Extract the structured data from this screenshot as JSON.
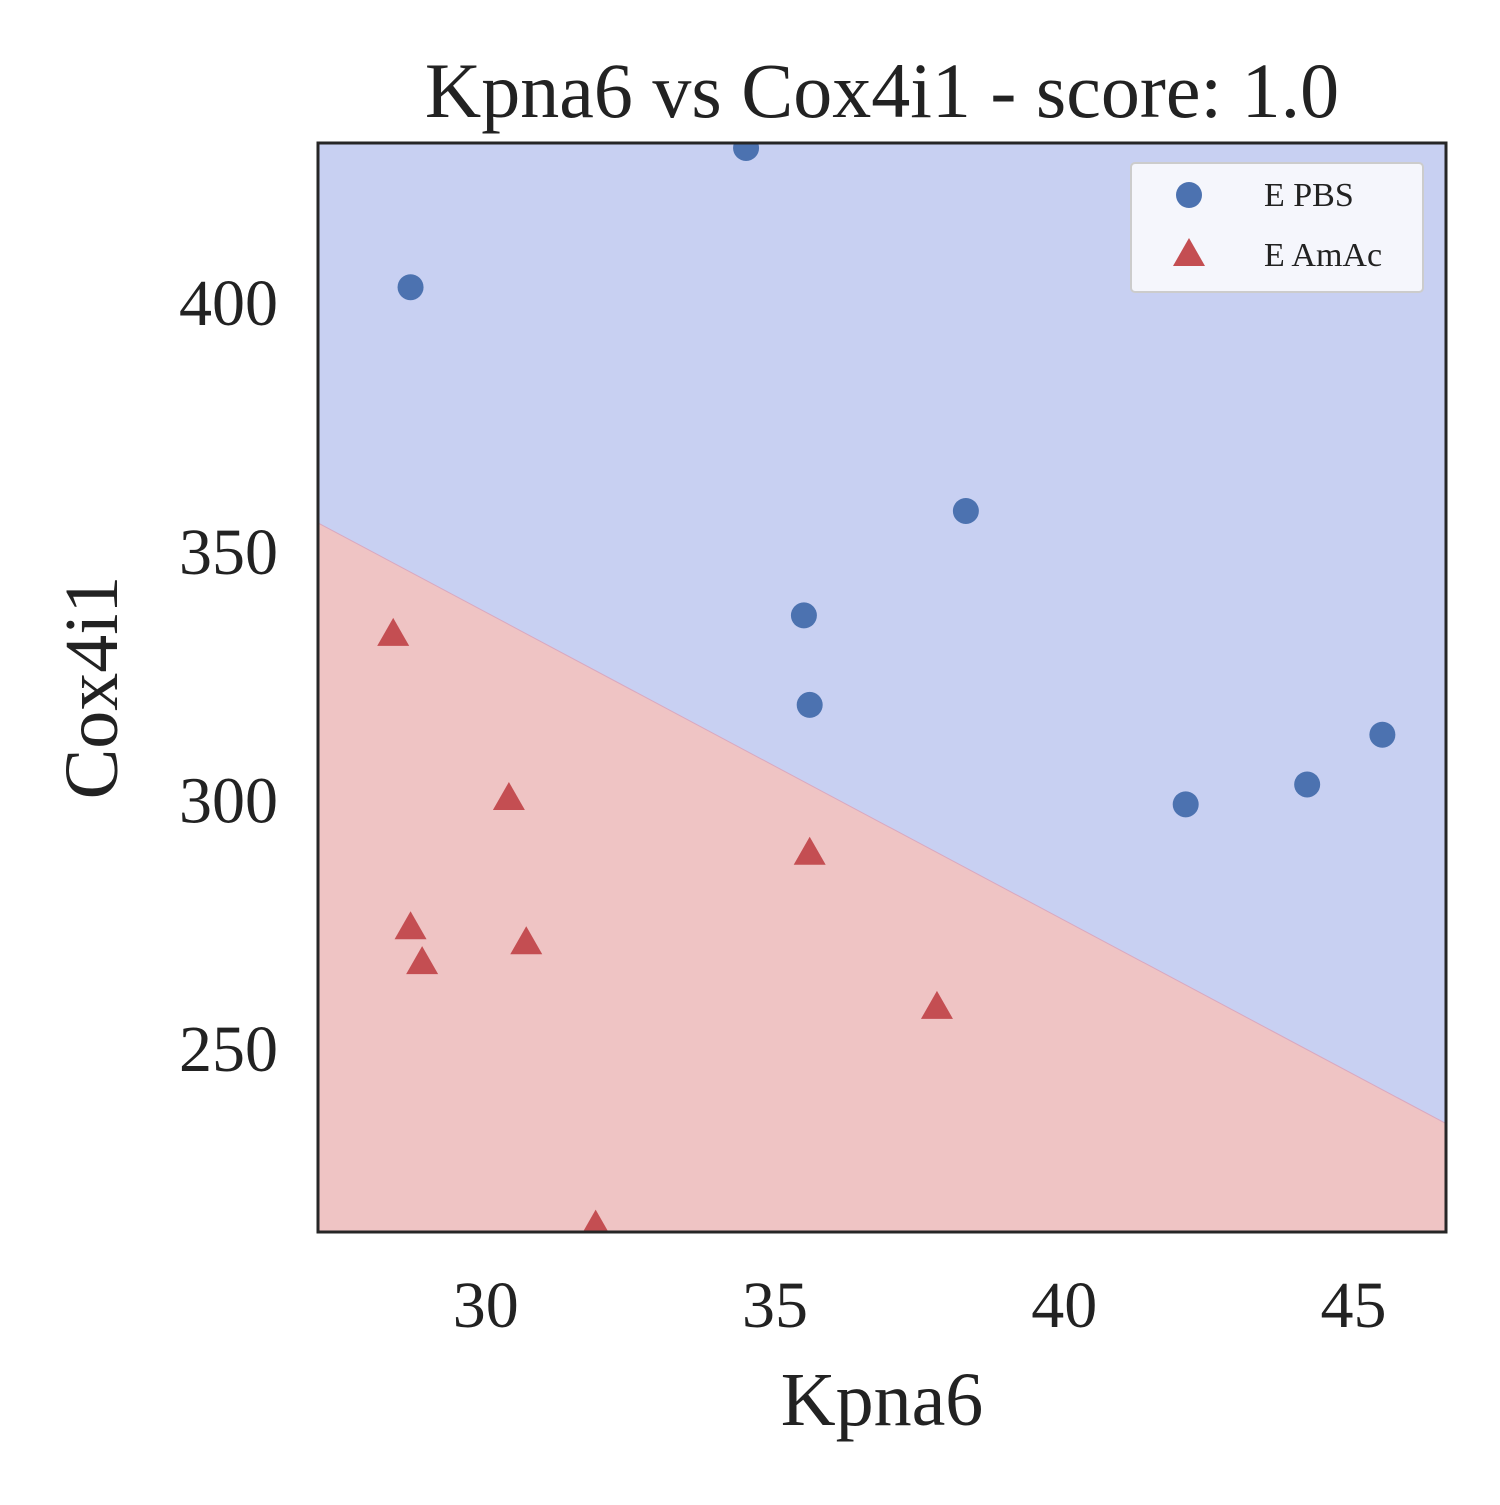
{
  "chart_data": {
    "type": "scatter",
    "title": "Kpna6 vs Cox4i1 - score: 1.0",
    "xlabel": "Kpna6",
    "ylabel": "Cox4i1",
    "xlim": [
      27.1,
      46.6
    ],
    "ylim": [
      213,
      432
    ],
    "xticks": [
      30,
      35,
      40,
      45
    ],
    "yticks": [
      250,
      300,
      350,
      400
    ],
    "grid": false,
    "legend_position": "top-right",
    "decision_regions": {
      "boundary": [
        [
          27.1,
          355.6
        ],
        [
          46.6,
          234.8
        ]
      ],
      "above": {
        "series": "E PBS",
        "color": "#c8d0f2"
      },
      "below": {
        "series": "E AmAc",
        "color": "#efc4c4"
      }
    },
    "series": [
      {
        "name": "E PBS",
        "marker": "circle",
        "color": "#4c72b0",
        "points": [
          [
            34.5,
            431
          ],
          [
            28.7,
            403
          ],
          [
            38.3,
            358
          ],
          [
            35.5,
            337
          ],
          [
            35.6,
            319
          ],
          [
            45.5,
            313
          ],
          [
            44.2,
            303
          ],
          [
            42.1,
            299
          ]
        ]
      },
      {
        "name": "E AmAc",
        "marker": "triangle",
        "color": "#c44e52",
        "points": [
          [
            28.4,
            333
          ],
          [
            30.4,
            300
          ],
          [
            35.6,
            289
          ],
          [
            28.7,
            274
          ],
          [
            30.7,
            271
          ],
          [
            28.9,
            267
          ],
          [
            37.8,
            258
          ],
          [
            31.9,
            214
          ]
        ]
      }
    ]
  }
}
